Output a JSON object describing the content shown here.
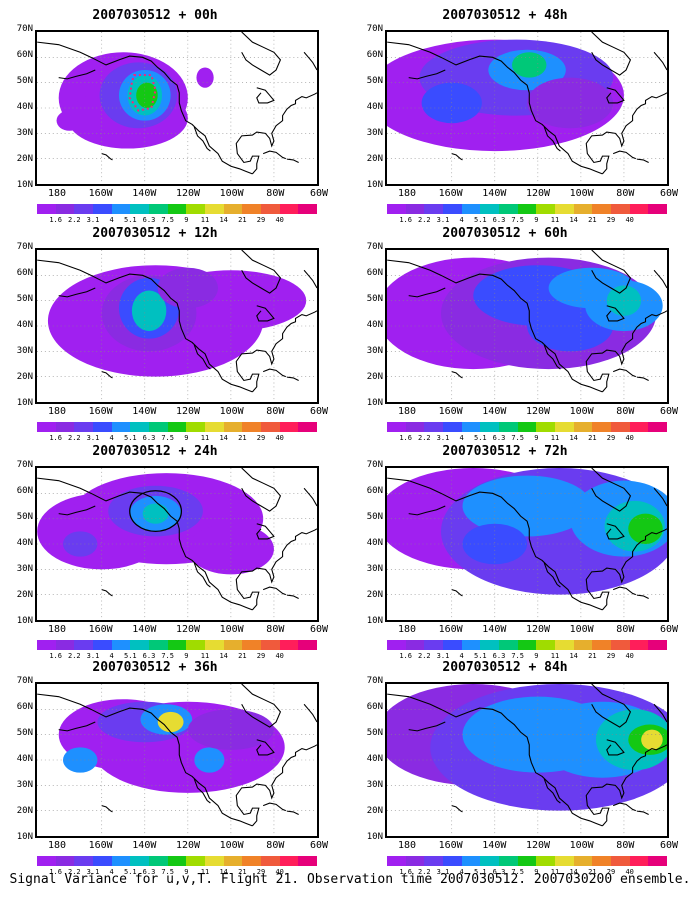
{
  "caption": "Signal Variance for u,v,T. Flight 21. Observation time 2007030512. 2007030200 ensemble.",
  "colors": {
    "scale": [
      "#a020f0",
      "#8a2be2",
      "#6a3cf0",
      "#3a4cff",
      "#1e90ff",
      "#00c0c0",
      "#00c878",
      "#14c814",
      "#a0dc00",
      "#e6dc32",
      "#e6af2d",
      "#f08228",
      "#f05a3c",
      "#ff1e5a",
      "#e6007a"
    ],
    "land_outline": "#000000",
    "grid": "#888888"
  },
  "colorbar": {
    "labels": [
      "1.6",
      "2.2",
      "3.1",
      "4",
      "5.1",
      "6.3",
      "7.5",
      "9",
      "11",
      "14",
      "21",
      "29",
      "40"
    ]
  },
  "axes": {
    "y_ticks": [
      "70N",
      "60N",
      "50N",
      "40N",
      "30N",
      "20N",
      "10N"
    ],
    "x_ticks": [
      "180",
      "160W",
      "140W",
      "120W",
      "100W",
      "80W",
      "60W"
    ]
  },
  "panels": [
    {
      "title": "2007030512 + 00h",
      "col": 0,
      "row": 0,
      "peak": "green",
      "annotation": "dotted-box"
    },
    {
      "title": "2007030512 + 12h",
      "col": 0,
      "row": 1,
      "peak": "green",
      "annotation": ""
    },
    {
      "title": "2007030512 + 24h",
      "col": 0,
      "row": 2,
      "peak": "green",
      "annotation": "ellipse"
    },
    {
      "title": "2007030512 + 36h",
      "col": 0,
      "row": 3,
      "peak": "yellow",
      "annotation": ""
    },
    {
      "title": "2007030512 + 48h",
      "col": 1,
      "row": 0,
      "peak": "green",
      "annotation": ""
    },
    {
      "title": "2007030512 + 60h",
      "col": 1,
      "row": 1,
      "peak": "green",
      "annotation": ""
    },
    {
      "title": "2007030512 + 72h",
      "col": 1,
      "row": 2,
      "peak": "green",
      "annotation": ""
    },
    {
      "title": "2007030512 + 84h",
      "col": 1,
      "row": 3,
      "peak": "yellow",
      "annotation": ""
    }
  ]
}
